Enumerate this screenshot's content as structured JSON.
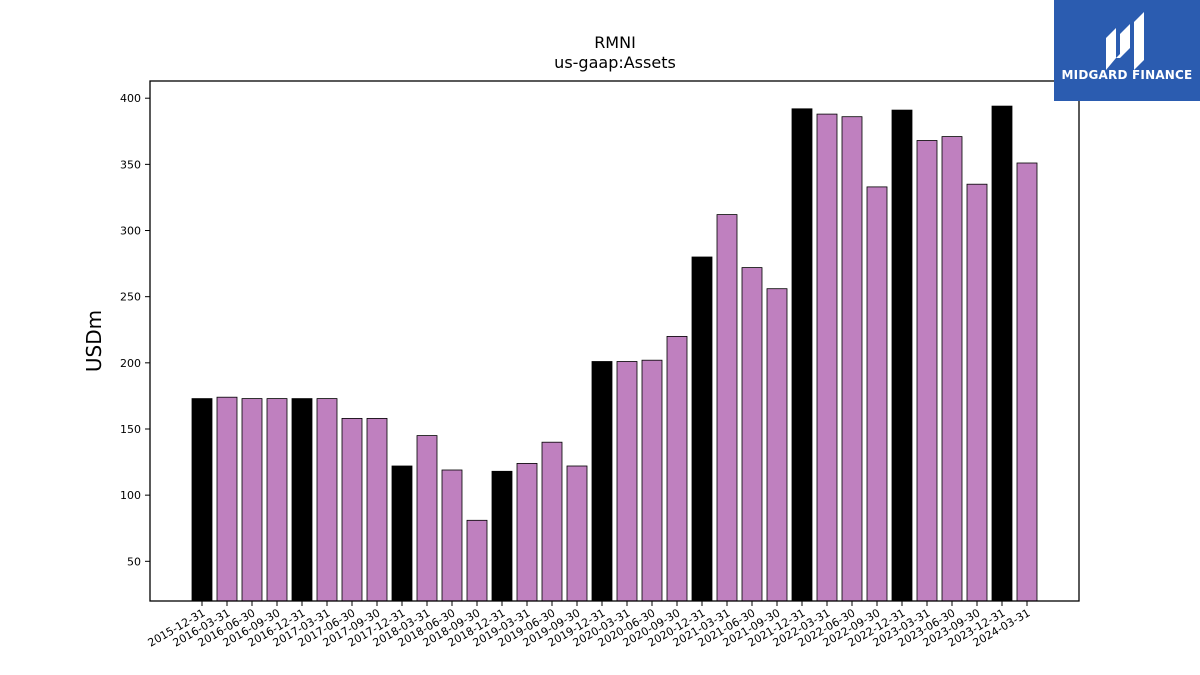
{
  "brand": {
    "name": "MIDGARD FINANCE",
    "logo_icon": "midgard-m-icon",
    "background": "#2b5cb0"
  },
  "colors": {
    "annual_bar": "#000000",
    "quarter_bar": "#bf80bf",
    "edge": "#000000"
  },
  "chart_data": {
    "type": "bar",
    "title": "RMNI",
    "subtitle": "us-gaap:Assets",
    "xlabel": "",
    "ylabel": "USDm",
    "ylim": [
      20,
      413
    ],
    "yticks": [
      50,
      100,
      150,
      200,
      250,
      300,
      350,
      400
    ],
    "grid": false,
    "categories": [
      "2015-12-31",
      "2016-03-31",
      "2016-06-30",
      "2016-09-30",
      "2016-12-31",
      "2017-03-31",
      "2017-06-30",
      "2017-09-30",
      "2017-12-31",
      "2018-03-31",
      "2018-06-30",
      "2018-09-30",
      "2018-12-31",
      "2019-03-31",
      "2019-06-30",
      "2019-09-30",
      "2019-12-31",
      "2020-03-31",
      "2020-06-30",
      "2020-09-30",
      "2020-12-31",
      "2021-03-31",
      "2021-06-30",
      "2021-09-30",
      "2021-12-31",
      "2022-03-31",
      "2022-06-30",
      "2022-09-30",
      "2022-12-31",
      "2023-03-31",
      "2023-06-30",
      "2023-09-30",
      "2023-12-31",
      "2024-03-31"
    ],
    "values": [
      173,
      174,
      173,
      173,
      173,
      173,
      158,
      158,
      122,
      145,
      119,
      81,
      118,
      124,
      140,
      122,
      201,
      201,
      202,
      220,
      280,
      312,
      272,
      256,
      392,
      388,
      386,
      333,
      391,
      368,
      371,
      335,
      394,
      351
    ],
    "annual": [
      true,
      false,
      false,
      false,
      true,
      false,
      false,
      false,
      true,
      false,
      false,
      false,
      true,
      false,
      false,
      false,
      true,
      false,
      false,
      false,
      true,
      false,
      false,
      false,
      true,
      false,
      false,
      false,
      true,
      false,
      false,
      false,
      true,
      false
    ]
  }
}
